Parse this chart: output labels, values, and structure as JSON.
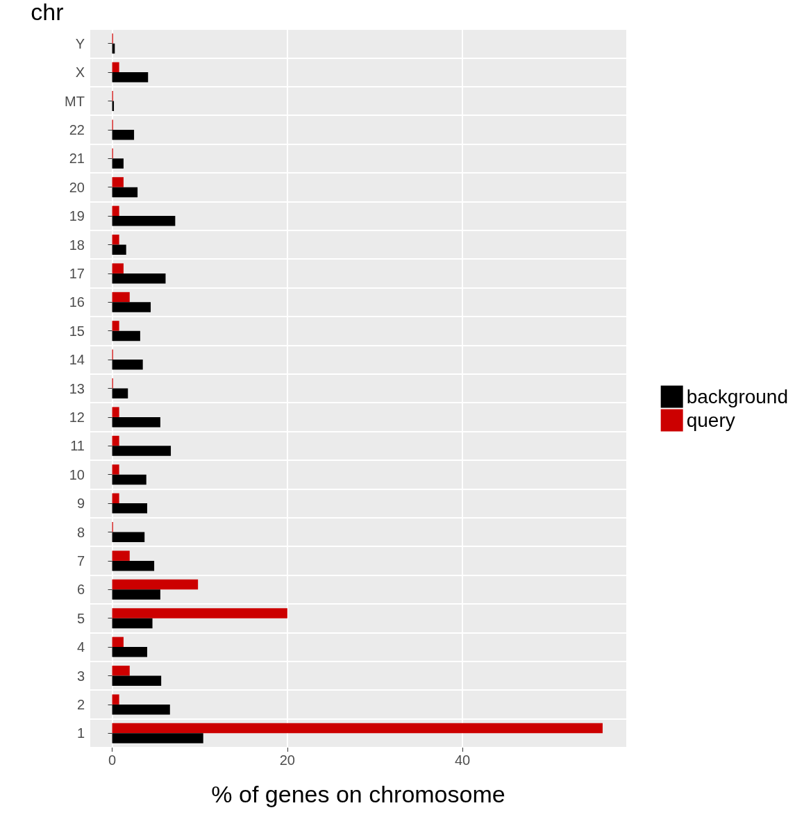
{
  "chart_data": {
    "type": "bar",
    "orientation": "horizontal",
    "ylabel": "chr",
    "xlabel": "% of genes on chromosome",
    "categories": [
      "Y",
      "X",
      "MT",
      "22",
      "21",
      "20",
      "19",
      "18",
      "17",
      "16",
      "15",
      "14",
      "13",
      "12",
      "11",
      "10",
      "9",
      "8",
      "7",
      "6",
      "5",
      "4",
      "3",
      "2",
      "1"
    ],
    "series": [
      {
        "name": "background",
        "color": "#000000",
        "values": [
          0.3,
          4.1,
          0.2,
          2.5,
          1.3,
          2.9,
          7.2,
          1.6,
          6.1,
          4.4,
          3.2,
          3.5,
          1.8,
          5.5,
          6.7,
          3.9,
          4.0,
          3.7,
          4.8,
          5.5,
          4.6,
          4.0,
          5.6,
          6.6,
          10.4
        ]
      },
      {
        "name": "query",
        "color": "#cc0000",
        "values": [
          0.1,
          0.8,
          0.1,
          0.1,
          0.1,
          1.3,
          0.8,
          0.8,
          1.3,
          2.0,
          0.8,
          0.1,
          0.1,
          0.8,
          0.8,
          0.8,
          0.8,
          0.1,
          2.0,
          9.8,
          20.0,
          1.3,
          2.0,
          0.8,
          56.0
        ]
      }
    ],
    "xlim": [
      -2.5,
      58.7
    ],
    "xticks": [
      0,
      20,
      40
    ],
    "grid": true,
    "legend": "right"
  }
}
